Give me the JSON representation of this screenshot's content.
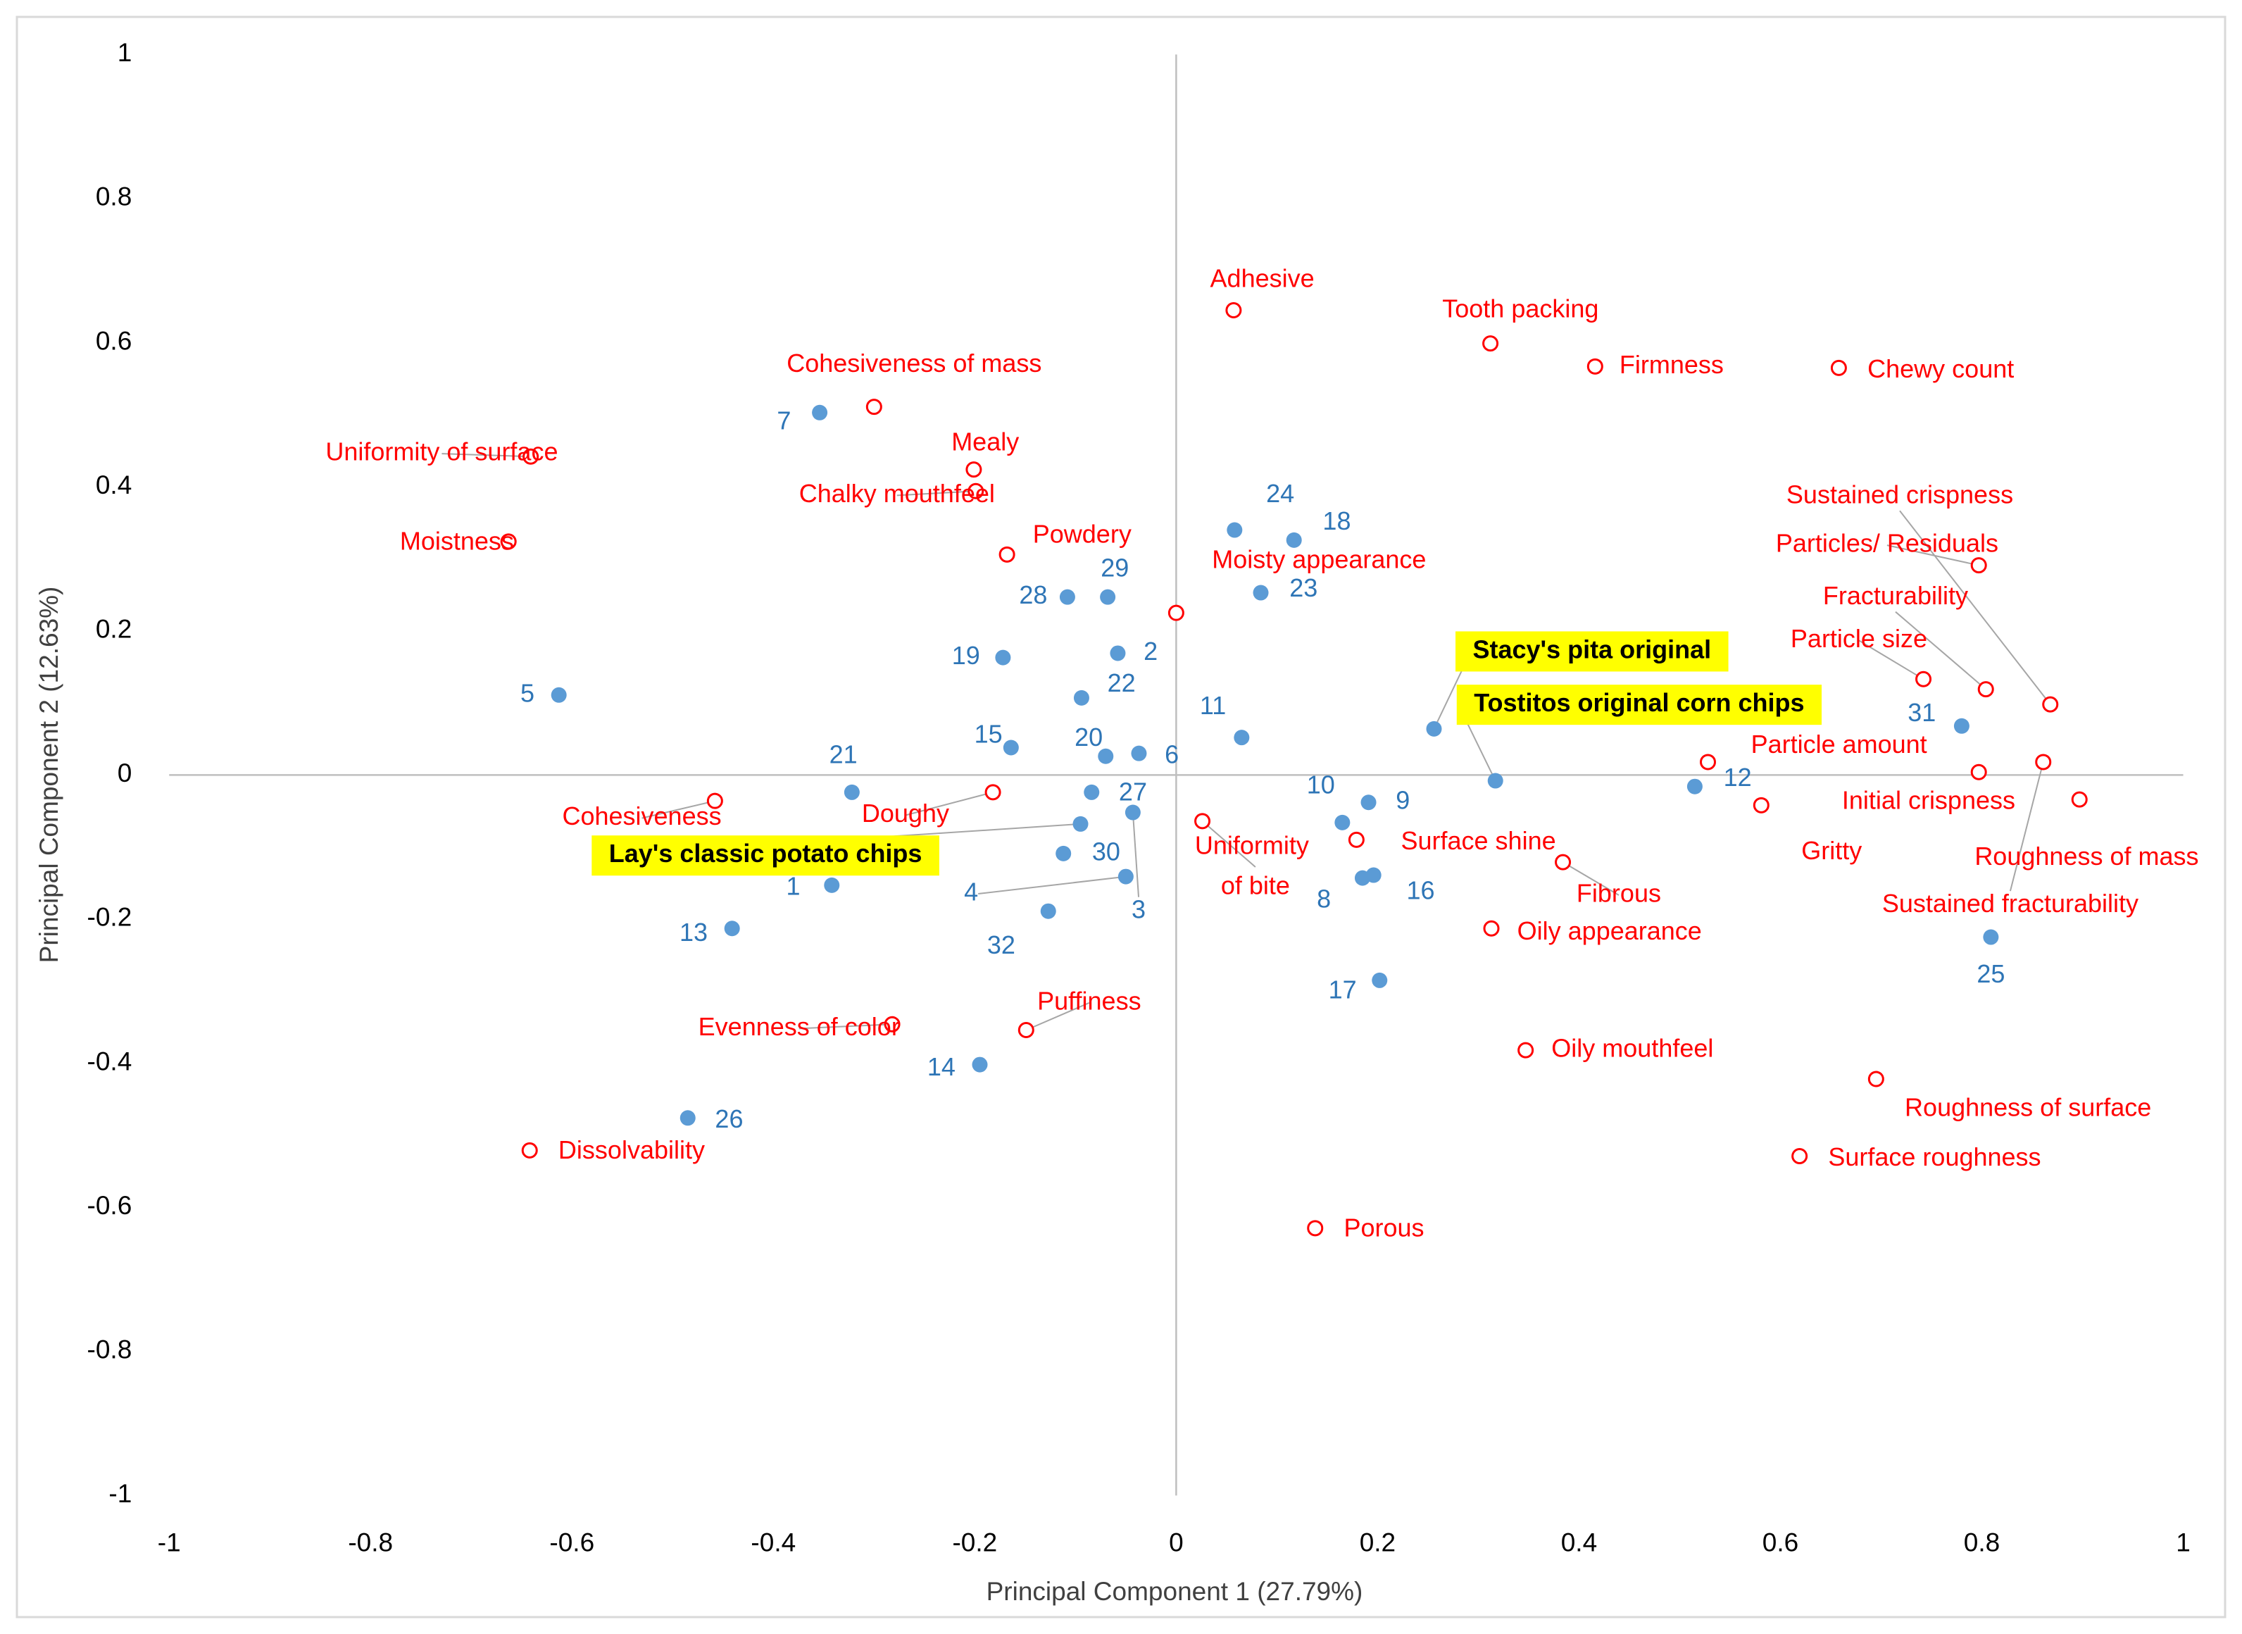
{
  "chart_data": {
    "type": "scatter",
    "x_label": "Principal Component 1 (27.79%)",
    "y_label": "Principal Component 2 (12.63%)",
    "xlim": [
      -1,
      1
    ],
    "ylim": [
      -1,
      1
    ],
    "xticks": [
      -1,
      -0.8,
      -0.6,
      -0.4,
      -0.2,
      0,
      0.2,
      0.4,
      0.6,
      0.8,
      1
    ],
    "yticks": [
      -1,
      -0.8,
      -0.6,
      -0.4,
      -0.2,
      0,
      0.2,
      0.4,
      0.6,
      0.8,
      1
    ],
    "grid": false,
    "series": [
      {
        "marker": "filled",
        "color": "#5b9bd5",
        "label_color": "#2e75b6",
        "labels": [
          "1",
          "2",
          "3",
          "4",
          "5",
          "6",
          "7",
          "8",
          "9",
          "10",
          "11",
          "12",
          "13",
          "14",
          "15",
          "16",
          "17",
          "18",
          "19",
          "20",
          "21",
          "22",
          "23",
          "24",
          "25",
          "26",
          "27",
          "28",
          "29",
          "30",
          "31",
          "32"
        ],
        "x": [
          -0.342,
          -0.058,
          -0.043,
          -0.05,
          -0.613,
          -0.037,
          -0.354,
          0.185,
          0.191,
          0.165,
          0.065,
          0.515,
          -0.441,
          -0.195,
          -0.164,
          0.196,
          0.202,
          0.117,
          -0.172,
          -0.07,
          -0.322,
          -0.094,
          0.084,
          0.058,
          0.809,
          -0.485,
          -0.084,
          -0.108,
          -0.068,
          -0.112,
          0.78,
          -0.127
        ],
        "values": [
          -0.153,
          0.169,
          -0.052,
          -0.141,
          0.111,
          0.03,
          0.503,
          -0.143,
          -0.038,
          -0.066,
          0.052,
          -0.016,
          -0.213,
          -0.402,
          0.038,
          -0.139,
          -0.285,
          0.326,
          0.163,
          0.026,
          -0.024,
          0.107,
          0.253,
          0.34,
          -0.225,
          -0.476,
          -0.024,
          0.247,
          0.247,
          -0.109,
          0.068,
          -0.189
        ]
      },
      {
        "marker": "filled",
        "color": "#5b9bd5",
        "label_color": "#000000",
        "label_background": "#ffff00",
        "labels": [
          "Stacy's pita original",
          "Tostitos original corn chips",
          "Lay's classic potato chips"
        ],
        "x": [
          0.256,
          0.317,
          -0.095
        ],
        "values": [
          0.064,
          -0.008,
          -0.068
        ]
      },
      {
        "marker": "open",
        "color": "#ff0000",
        "label_color": "#ff0000",
        "labels": [
          "Adhesive",
          "Tooth packing",
          "Firmness",
          "Chewy count",
          "Cohesiveness of mass",
          "Uniformity of surface",
          "Mealy",
          "Chalky mouthfeel",
          "Moistness",
          "Powdery",
          "Moisty appearance",
          "Particles/ Residuals",
          "Sustained crispness",
          "Fracturability",
          "Particle size",
          "Particle amount",
          "Initial crispness",
          "Sustained fracturability",
          "Roughness of mass",
          "Gritty",
          "Cohesiveness",
          "Doughy",
          "Uniformity of bite",
          "Surface shine",
          "Fibrous",
          "Oily appearance",
          "Puffiness",
          "Evenness of color",
          "Oily mouthfeel",
          "Roughness of surface",
          "Surface roughness",
          "Dissolvability",
          "Porous"
        ],
        "x": [
          0.057,
          0.312,
          0.416,
          0.658,
          -0.3,
          -0.641,
          -0.201,
          -0.199,
          -0.663,
          -0.168,
          0.0,
          0.797,
          0.868,
          0.804,
          0.742,
          0.528,
          0.797,
          0.861,
          0.897,
          0.581,
          -0.458,
          -0.182,
          0.026,
          0.179,
          0.384,
          0.313,
          -0.149,
          -0.282,
          0.347,
          0.695,
          0.619,
          -0.642,
          0.138
        ],
        "values": [
          0.645,
          0.599,
          0.567,
          0.565,
          0.511,
          0.442,
          0.424,
          0.394,
          0.324,
          0.306,
          0.225,
          0.291,
          0.098,
          0.119,
          0.133,
          0.018,
          0.004,
          0.018,
          -0.034,
          -0.042,
          -0.036,
          -0.024,
          -0.064,
          -0.09,
          -0.121,
          -0.213,
          -0.354,
          -0.346,
          -0.382,
          -0.422,
          -0.529,
          -0.521,
          -0.629
        ]
      }
    ]
  }
}
